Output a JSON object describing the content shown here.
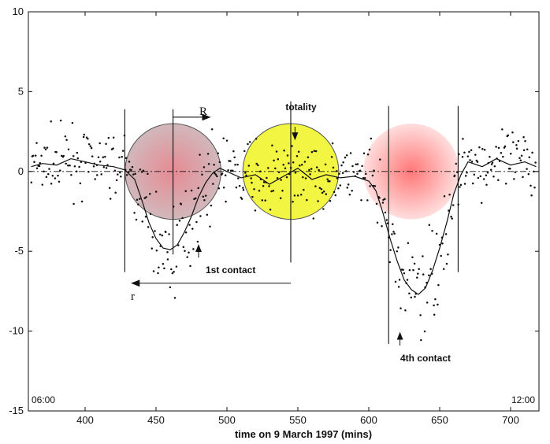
{
  "chart_data": {
    "type": "scatter",
    "xlabel": "time on 9 March 1997 (mins)",
    "ylabel": "",
    "xlim": [
      360,
      720
    ],
    "ylim": [
      -15,
      10
    ],
    "x_ticks": [
      400,
      450,
      500,
      550,
      600,
      650,
      700
    ],
    "y_ticks": [
      10,
      5,
      0,
      -5,
      -10,
      -15
    ],
    "corner_labels": {
      "left": "06:00",
      "right": "12:00"
    },
    "grid": false,
    "series": [
      {
        "style": "line",
        "x": [
          362,
          370,
          380,
          390,
          400,
          410,
          420,
          428,
          435,
          440,
          445,
          450,
          455,
          460,
          465,
          470,
          475,
          480,
          485,
          490,
          495,
          500,
          510,
          520,
          530,
          540,
          550,
          560,
          570,
          580,
          590,
          600,
          605,
          610,
          615,
          620,
          625,
          630,
          635,
          640,
          645,
          650,
          655,
          660,
          665,
          670,
          680,
          690,
          700,
          710,
          718
        ],
        "y": [
          0.3,
          0.5,
          0.4,
          0.8,
          0.6,
          0.4,
          0.3,
          0.1,
          -0.5,
          -1.8,
          -3.2,
          -4.2,
          -4.8,
          -4.9,
          -4.6,
          -3.8,
          -2.8,
          -1.6,
          -0.7,
          -0.1,
          0.2,
          0.0,
          -0.4,
          -0.2,
          -0.8,
          -0.3,
          0.2,
          -0.5,
          -0.2,
          -0.4,
          -0.3,
          -0.6,
          -1.2,
          -2.6,
          -4.2,
          -5.6,
          -6.8,
          -7.4,
          -7.7,
          -7.3,
          -6.2,
          -4.8,
          -3.2,
          -1.4,
          -0.2,
          0.6,
          0.3,
          0.8,
          0.4,
          0.6,
          0.3
        ]
      },
      {
        "style": "points"
      }
    ],
    "annotations": {
      "R": "R",
      "r": "r",
      "totality": "totality",
      "first_contact": "1st contact",
      "fourth_contact": "4th contact"
    },
    "colors": {
      "first_disk": "#c98a8f",
      "totality_disk": "#f2f542",
      "fourth_disk": "#ff8888"
    }
  }
}
